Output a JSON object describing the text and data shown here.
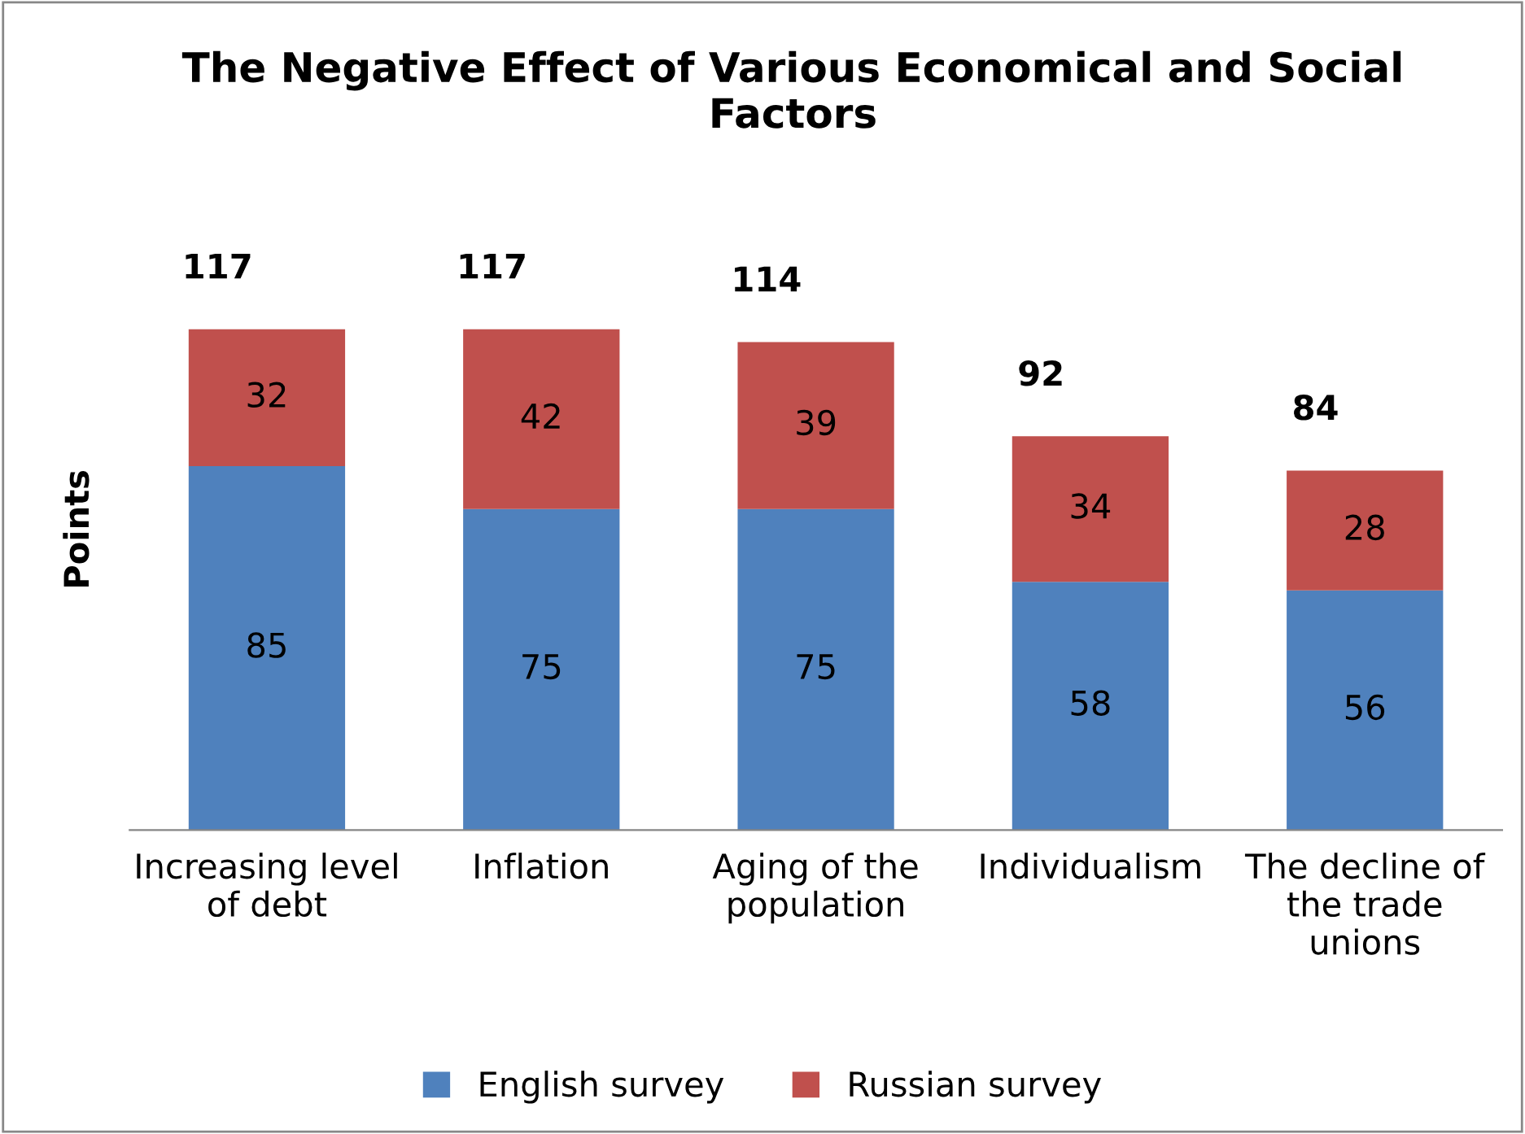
{
  "chart_data": {
    "type": "bar",
    "stacked": true,
    "title": "The Negative Effect of Various Economical and Social\nFactors",
    "ylabel": "Points",
    "categories": [
      "Increasing level\nof debt",
      "Inflation",
      "Aging of the\npopulation",
      "Individualism",
      "The decline of\nthe trade\nunions"
    ],
    "series": [
      {
        "name": "English survey",
        "color": "#4f81bd",
        "values": [
          85,
          75,
          75,
          58,
          56
        ]
      },
      {
        "name": "Russian survey",
        "color": "#c0504d",
        "values": [
          32,
          42,
          39,
          34,
          28
        ]
      }
    ],
    "totals": [
      "117",
      "117",
      "114",
      "92",
      "84"
    ],
    "data_labels": true,
    "legend": "bottom",
    "grid": false,
    "tick_labels": "x"
  }
}
